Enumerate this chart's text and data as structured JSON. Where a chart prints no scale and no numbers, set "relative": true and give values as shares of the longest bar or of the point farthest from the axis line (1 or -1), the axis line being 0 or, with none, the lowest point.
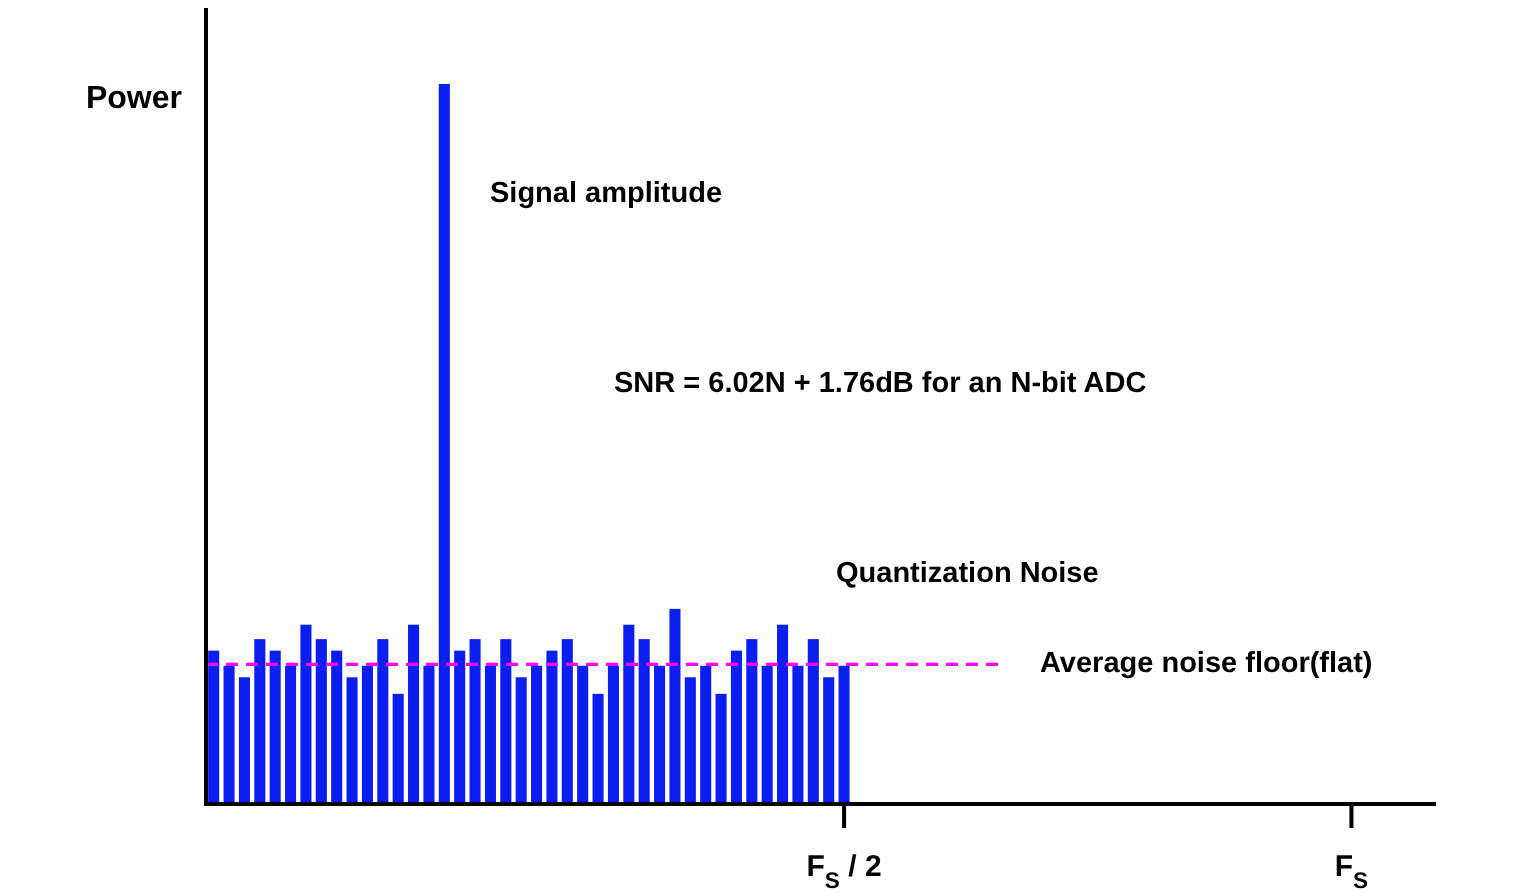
{
  "chart_data": {
    "type": "bar",
    "relative": true,
    "ylabel": "Power",
    "color": "#0a1ef0",
    "categories": [
      null,
      null,
      null,
      null,
      null,
      null,
      null,
      null,
      null,
      null,
      null,
      null,
      null,
      null,
      null,
      null,
      null,
      null,
      null,
      null,
      null,
      null,
      null,
      null,
      null,
      null,
      null,
      null,
      null,
      null,
      null,
      null,
      null,
      null,
      null,
      null,
      null,
      null,
      null,
      null,
      null,
      "F$_{S}$ / 2",
      null,
      null,
      null,
      null,
      null,
      null,
      null,
      null,
      null,
      null,
      null,
      null,
      null,
      null,
      null,
      null,
      null,
      null,
      null,
      null,
      null,
      null,
      null,
      null,
      null,
      null,
      null,
      null,
      null,
      null,
      null,
      null,
      "F$_{S}$",
      null,
      null,
      null,
      null,
      null
    ],
    "values": [
      0.213,
      0.192,
      0.176,
      0.229,
      0.213,
      0.192,
      0.249,
      0.229,
      0.213,
      0.176,
      0.192,
      0.229,
      0.153,
      0.249,
      0.192,
      1,
      0.213,
      0.229,
      0.192,
      0.229,
      0.176,
      0.192,
      0.213,
      0.229,
      0.192,
      0.153,
      0.192,
      0.249,
      0.229,
      0.192,
      0.271,
      0.176,
      0.192,
      0.153,
      0.213,
      0.229,
      0.192,
      0.249,
      0.192,
      0.229,
      0.176,
      0.192,
      null,
      null,
      null,
      null,
      null,
      null,
      null,
      null,
      null,
      null,
      null,
      null,
      null,
      null,
      null,
      null,
      null,
      null,
      null,
      null,
      null,
      null,
      null,
      null,
      null,
      null,
      null,
      null,
      null,
      null,
      null,
      null,
      null,
      null,
      null,
      null,
      null,
      null
    ],
    "tick_labels": "x",
    "ref_lines": [
      {
        "axis": "y",
        "value": 0.194,
        "label": "Average noise floor(flat)",
        "color": "#ff00ff",
        "line_style": "dashed"
      }
    ],
    "annotations": [
      "Signal amplitude",
      "SNR = 6.02N + 1.76dB for an N-bit ADC",
      "Quantization Noise"
    ]
  }
}
